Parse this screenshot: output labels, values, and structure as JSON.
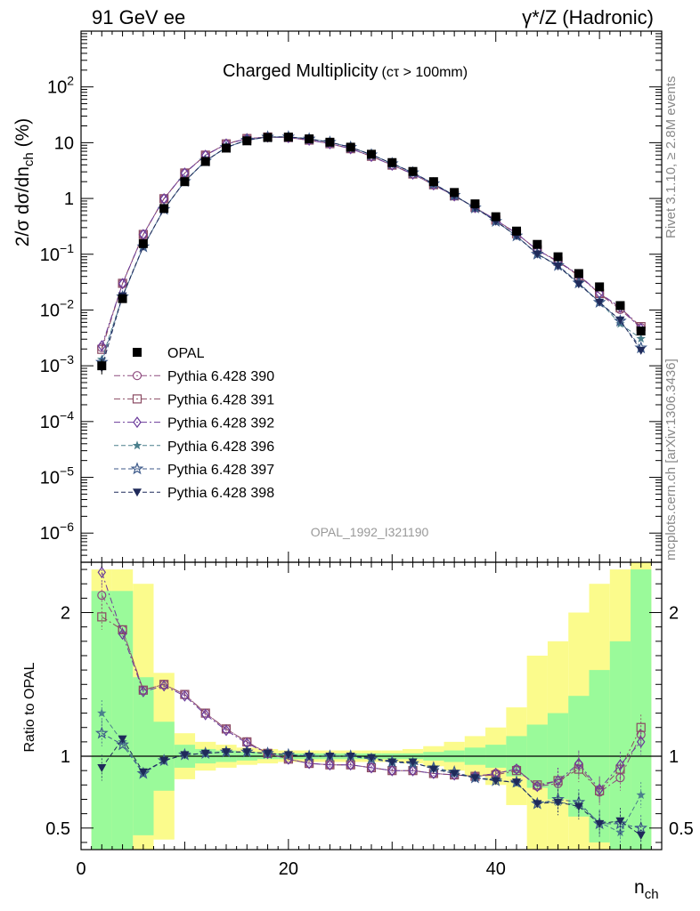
{
  "header": {
    "left": "91 GeV ee",
    "right": "γ*/Z (Hadronic)"
  },
  "side": {
    "rivet": "Rivet 3.1.10, ≥ 2.8M events",
    "mcplots": "mcplots.cern.ch [arXiv:1306.3436]"
  },
  "chart_data": {
    "type": "scatter",
    "title": "Charged Multiplicity",
    "title_suffix": "(cτ > 100mm)",
    "analysis": "OPAL_1992_I321190",
    "xlabel": "n_ch",
    "ylabel": "2/σ dσ/dn_ch (%)",
    "ratio_ylabel": "Ratio to OPAL",
    "xlim": [
      0,
      56
    ],
    "ylim_main": [
      3e-07,
      1000
    ],
    "ylim_ratio": [
      0.35,
      2.35
    ],
    "yscale_main": "log",
    "x_ticks": [
      "0",
      "20",
      "40"
    ],
    "main_y_ticks": [
      "10^-6",
      "10^-5",
      "10^-4",
      "10^-3",
      "10^-2",
      "10^-1",
      "1",
      "10",
      "10^2"
    ],
    "ratio_y_ticks": [
      "0.5",
      "1",
      "2"
    ],
    "legend_position": "middle-left",
    "x": [
      2,
      4,
      6,
      8,
      10,
      12,
      14,
      16,
      18,
      20,
      22,
      24,
      26,
      28,
      30,
      32,
      34,
      36,
      38,
      40,
      42,
      44,
      46,
      48,
      50,
      52,
      54
    ],
    "data": {
      "name": "OPAL",
      "values": [
        0.001,
        0.016,
        0.155,
        0.66,
        2.0,
        4.6,
        8.0,
        10.8,
        12.4,
        12.6,
        11.7,
        10.2,
        8.3,
        6.2,
        4.4,
        3.05,
        2.0,
        1.28,
        0.8,
        0.47,
        0.26,
        0.15,
        0.09,
        0.045,
        0.026,
        0.012,
        0.0042
      ],
      "errors": [
        0.0003,
        0.002,
        0.01,
        0.03,
        0.08,
        0.15,
        0.25,
        0.3,
        0.3,
        0.3,
        0.3,
        0.25,
        0.2,
        0.15,
        0.1,
        0.08,
        0.06,
        0.04,
        0.03,
        0.02,
        0.012,
        0.008,
        0.005,
        0.003,
        0.002,
        0.001,
        0.0006
      ]
    },
    "series": [
      {
        "name": "Pythia 6.428 390",
        "marker": "circle-open",
        "color": "#8e4a7e",
        "dash": "7,3,2,3",
        "ratio": [
          2.12,
          1.88,
          1.46,
          1.5,
          1.43,
          1.3,
          1.19,
          1.1,
          1.02,
          0.98,
          0.95,
          0.94,
          0.94,
          0.92,
          0.9,
          0.9,
          0.88,
          0.87,
          0.86,
          0.88,
          0.91,
          0.79,
          0.81,
          0.94,
          0.75,
          0.85,
          1.15
        ]
      },
      {
        "name": "Pythia 6.428 391",
        "marker": "square-open",
        "color": "#8a4a62",
        "dash": "7,3,2,3",
        "ratio": [
          1.97,
          1.88,
          1.46,
          1.5,
          1.43,
          1.3,
          1.19,
          1.1,
          1.02,
          0.98,
          0.95,
          0.94,
          0.94,
          0.92,
          0.9,
          0.9,
          0.88,
          0.87,
          0.86,
          0.87,
          0.9,
          0.8,
          0.83,
          0.91,
          0.76,
          0.91,
          1.2
        ]
      },
      {
        "name": "Pythia 6.428 392",
        "marker": "diamond-open",
        "color": "#6a3a9a",
        "dash": "7,3,2,3",
        "ratio": [
          2.28,
          1.85,
          1.45,
          1.49,
          1.42,
          1.29,
          1.18,
          1.09,
          1.02,
          0.98,
          0.95,
          0.94,
          0.94,
          0.92,
          0.9,
          0.9,
          0.88,
          0.87,
          0.86,
          0.88,
          0.91,
          0.79,
          0.83,
          0.95,
          0.77,
          0.94,
          1.1
        ]
      },
      {
        "name": "Pythia 6.428 396",
        "marker": "star-filled",
        "color": "#4a7f8c",
        "dash": "5,3",
        "ratio": [
          1.3,
          1.1,
          0.88,
          0.97,
          1.01,
          1.02,
          1.03,
          1.03,
          1.02,
          1.01,
          1.0,
          1.0,
          1.0,
          0.98,
          0.96,
          0.95,
          0.92,
          0.88,
          0.85,
          0.84,
          0.81,
          0.68,
          0.68,
          0.66,
          0.54,
          0.47,
          0.73
        ]
      },
      {
        "name": "Pythia 6.428 397",
        "marker": "star-open",
        "color": "#3d5a8a",
        "dash": "5,3",
        "ratio": [
          1.16,
          1.08,
          0.88,
          0.97,
          1.01,
          1.02,
          1.03,
          1.03,
          1.02,
          1.01,
          1.0,
          1.0,
          1.0,
          0.98,
          0.96,
          0.95,
          0.92,
          0.89,
          0.85,
          0.83,
          0.82,
          0.67,
          0.7,
          0.68,
          0.53,
          0.53,
          0.5
        ]
      },
      {
        "name": "Pythia 6.428 398",
        "marker": "triangle-down-filled",
        "color": "#1f2a5a",
        "dash": "5,3",
        "ratio": [
          0.92,
          1.12,
          0.89,
          0.97,
          1.01,
          1.02,
          1.03,
          1.03,
          1.02,
          1.01,
          1.0,
          1.0,
          1.0,
          0.99,
          0.96,
          0.96,
          0.91,
          0.88,
          0.85,
          0.83,
          0.82,
          0.67,
          0.68,
          0.65,
          0.53,
          0.55,
          0.45
        ]
      }
    ],
    "uncertainty_bands": {
      "x_edges": [
        1,
        3,
        5,
        7,
        9,
        11,
        13,
        15,
        17,
        19,
        21,
        23,
        25,
        27,
        29,
        31,
        33,
        35,
        37,
        39,
        41,
        43,
        45,
        47,
        49,
        51,
        53,
        55
      ],
      "green_halfwidth": [
        1.15,
        1.15,
        0.55,
        0.24,
        0.08,
        0.05,
        0.04,
        0.03,
        0.02,
        0.02,
        0.02,
        0.02,
        0.02,
        0.02,
        0.02,
        0.02,
        0.03,
        0.04,
        0.06,
        0.08,
        0.14,
        0.22,
        0.3,
        0.42,
        0.6,
        0.8,
        1.3
      ],
      "yellow_halfwidth": [
        1.3,
        1.3,
        1.2,
        0.58,
        0.16,
        0.1,
        0.08,
        0.06,
        0.05,
        0.04,
        0.04,
        0.04,
        0.04,
        0.04,
        0.04,
        0.05,
        0.07,
        0.1,
        0.14,
        0.2,
        0.34,
        0.7,
        0.8,
        1.0,
        1.2,
        1.3,
        1.4
      ],
      "green_color": "#9afa9a",
      "yellow_color": "#fbfb8c"
    }
  }
}
